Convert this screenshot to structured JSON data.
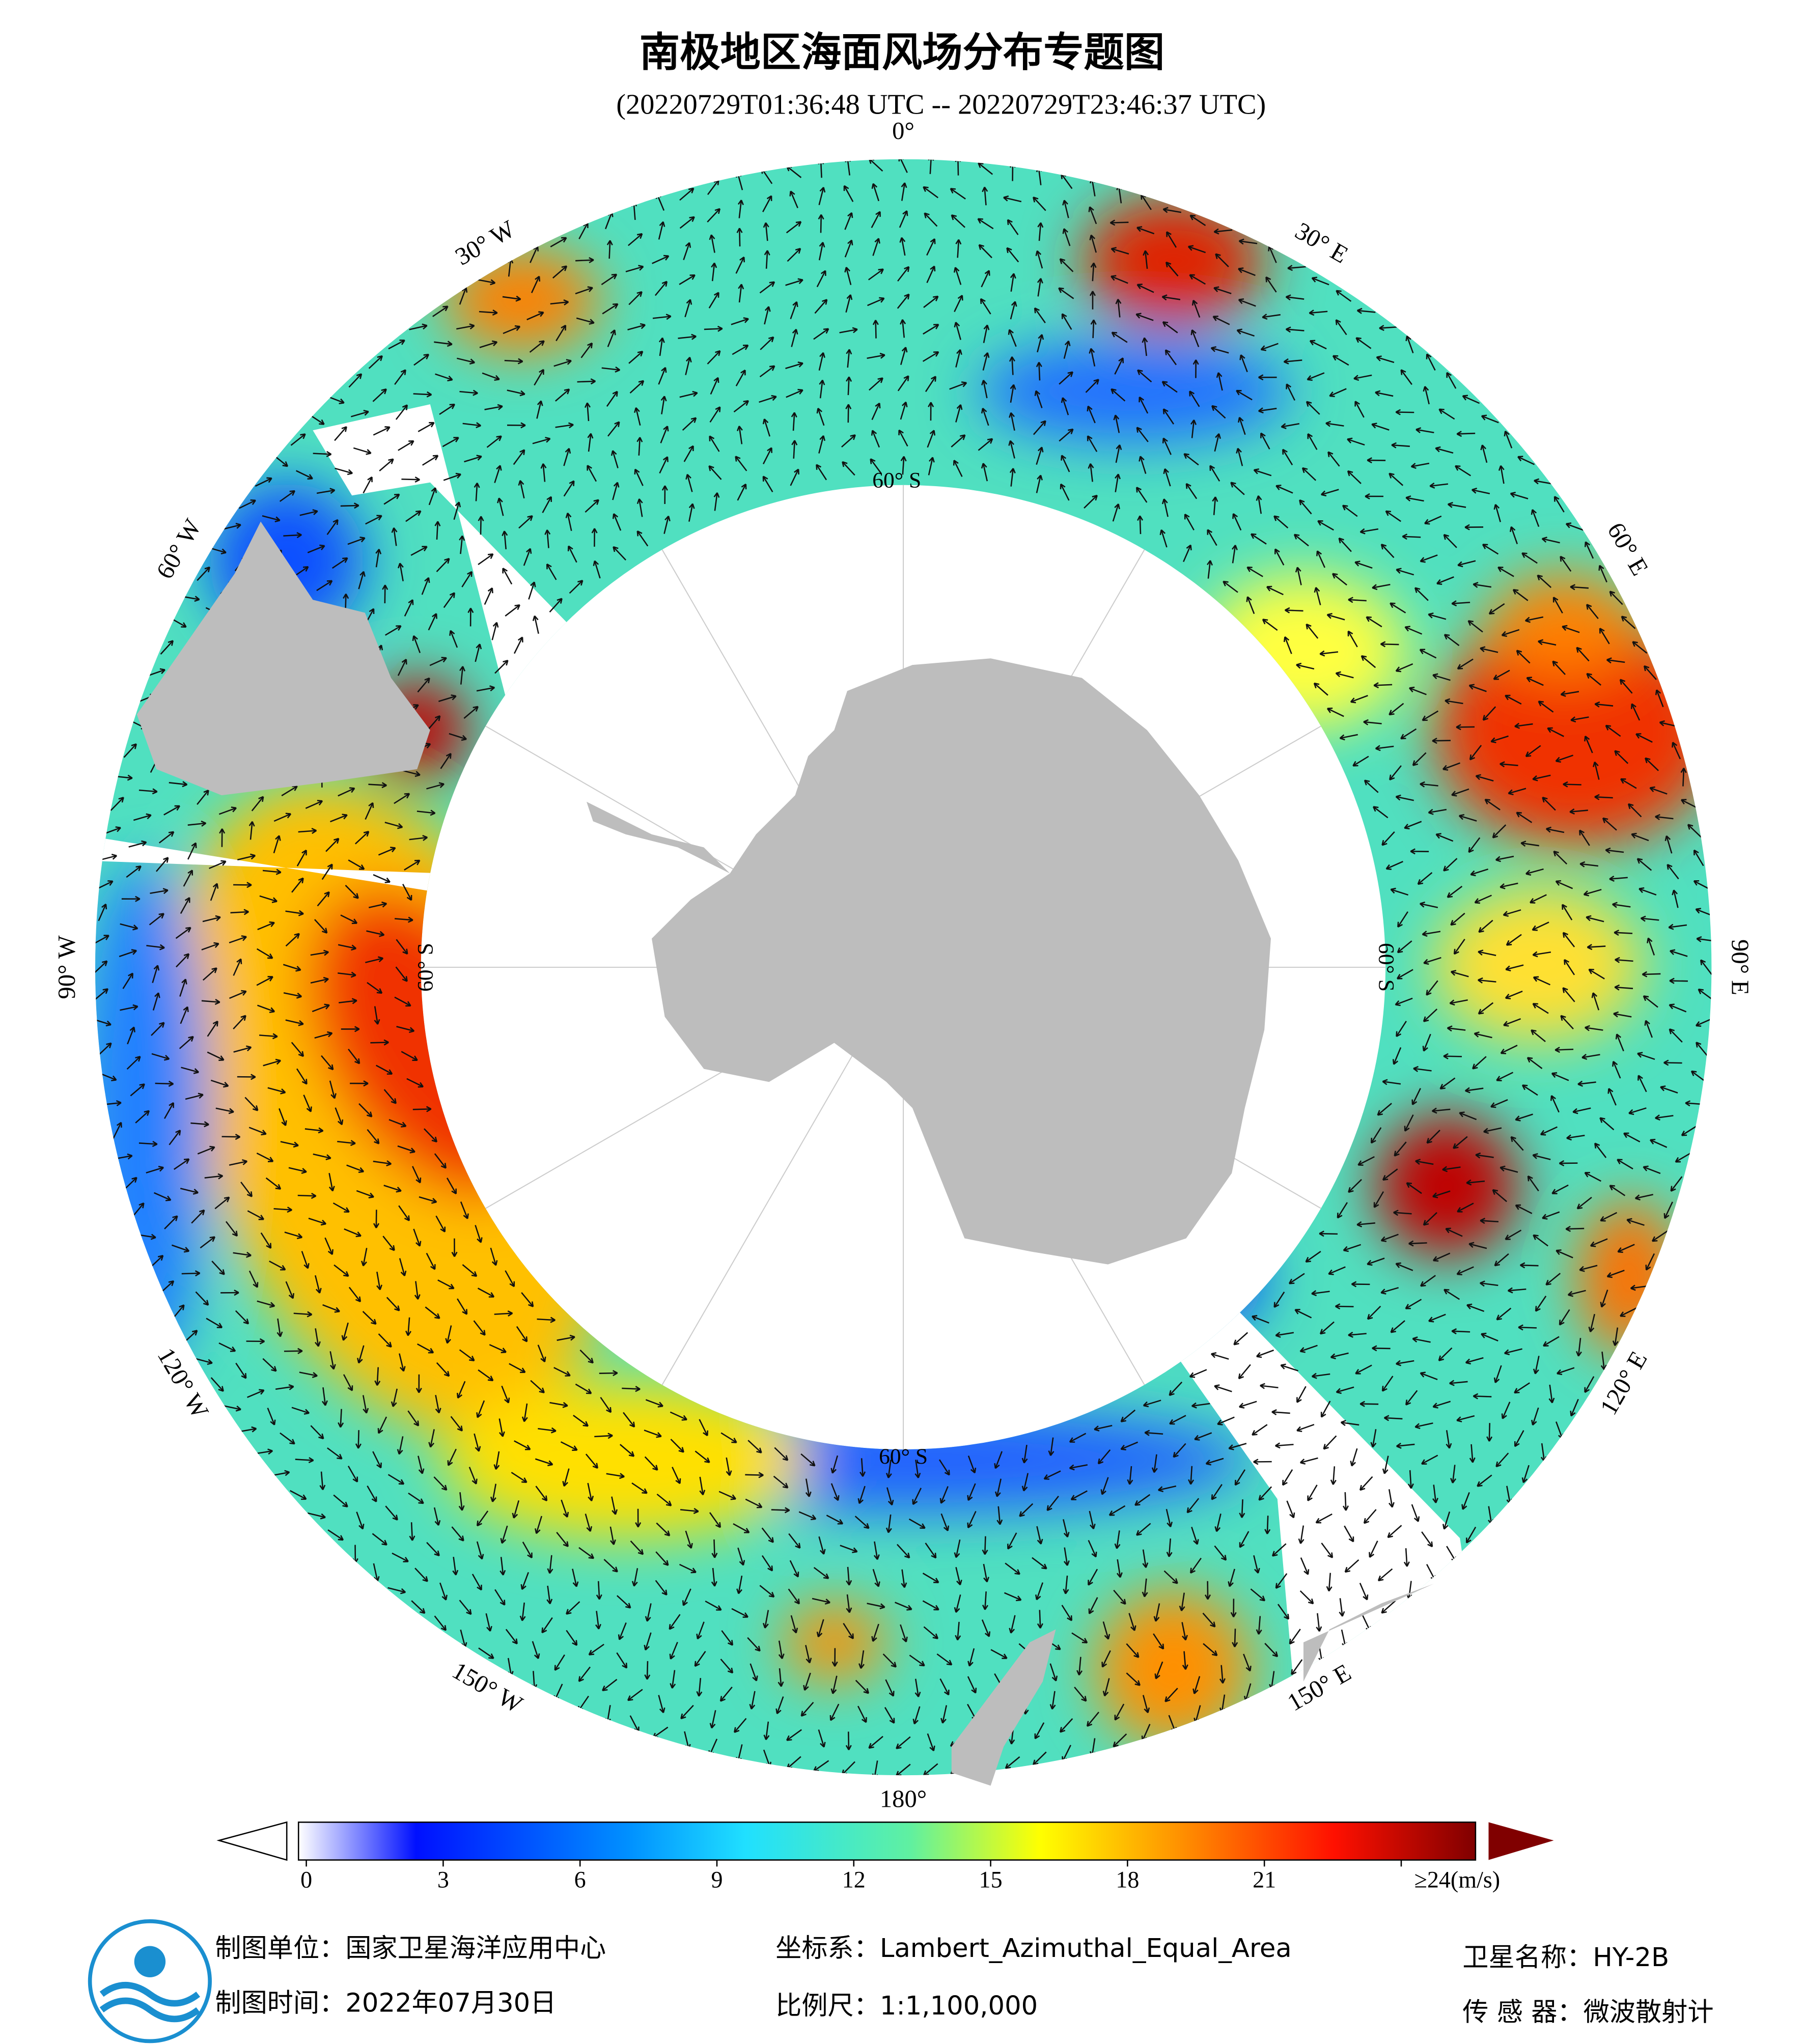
{
  "header": {
    "title": "南极地区海面风场分布专题图",
    "subtitle": "(20220729T01:36:48 UTC -- 20220729T23:46:37 UTC)"
  },
  "map": {
    "lon_labels": [
      "0°",
      "30° E",
      "60° E",
      "90° E",
      "120° E",
      "150° E",
      "180°",
      "150° W",
      "120° W",
      "90° W",
      "60° W",
      "30° W"
    ],
    "lat_labels": [
      "60° S",
      "60° S",
      "60° S",
      "60° S"
    ]
  },
  "colorbar": {
    "range": [
      0,
      24
    ],
    "ticks": [
      0,
      3,
      6,
      9,
      12,
      15,
      18,
      21,
      {
        "value": 24,
        "label": "≥24(m/s)"
      }
    ]
  },
  "footer": {
    "producer": "制图单位：国家卫星海洋应用中心",
    "date": "制图时间：2022年07月30日",
    "projection": "坐标系：Lambert_Azimuthal_Equal_Area",
    "scale": "比例尺：1:1,100,000",
    "satellite": "卫星名称：HY-2B",
    "sensor": "传 感 器：微波散射计"
  }
}
